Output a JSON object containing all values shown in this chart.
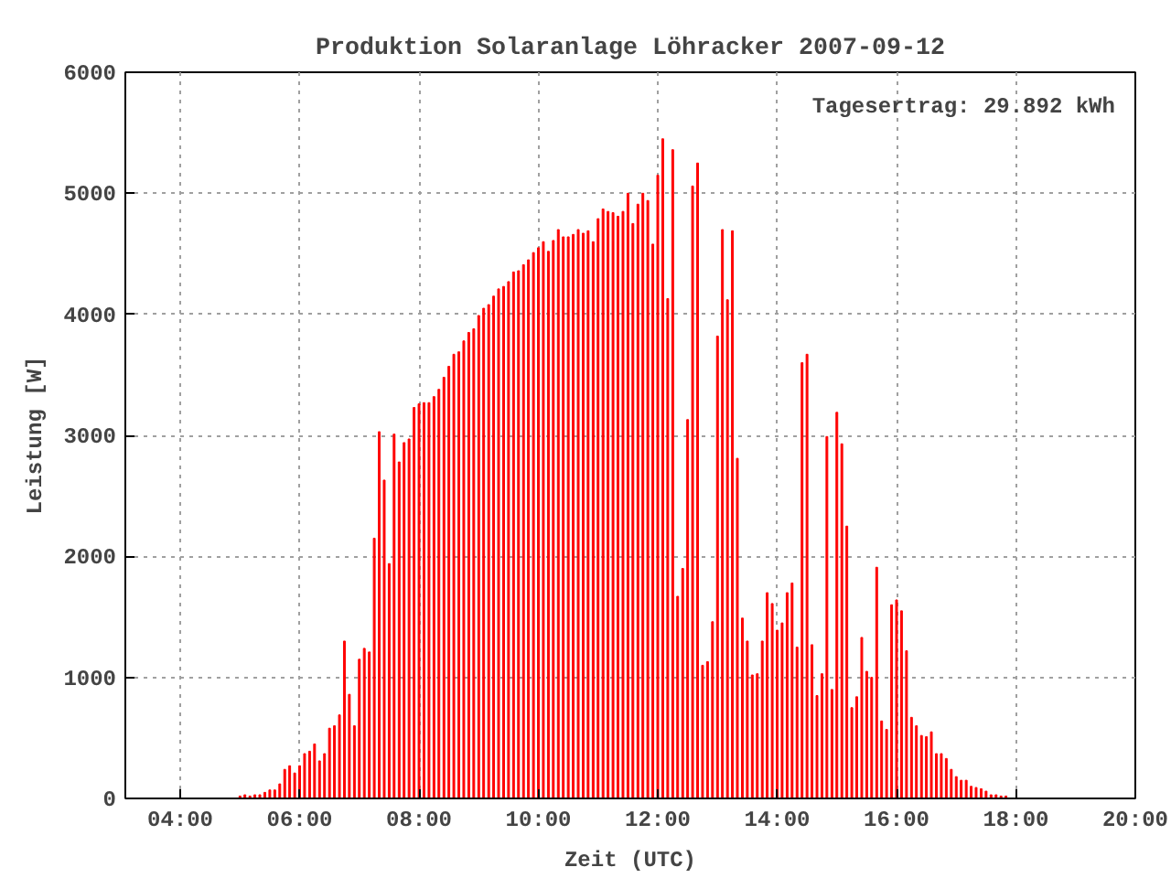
{
  "chart_data": {
    "type": "bar",
    "title": "Produktion Solaranlage Löhracker 2007-09-12",
    "xlabel": "Zeit (UTC)",
    "ylabel": "Leistung [W]",
    "annotations": [
      "Tagesertrag: 29.892 kWh"
    ],
    "x": [
      5,
      5.083,
      5.167,
      5.25,
      5.333,
      5.417,
      5.5,
      5.583,
      5.667,
      5.75,
      5.833,
      5.917,
      6,
      6.083,
      6.167,
      6.25,
      6.333,
      6.417,
      6.5,
      6.583,
      6.667,
      6.75,
      6.833,
      6.917,
      7,
      7.083,
      7.167,
      7.25,
      7.333,
      7.417,
      7.5,
      7.583,
      7.667,
      7.75,
      7.833,
      7.917,
      8,
      8.083,
      8.167,
      8.25,
      8.333,
      8.417,
      8.5,
      8.583,
      8.667,
      8.75,
      8.833,
      8.917,
      9,
      9.083,
      9.167,
      9.25,
      9.333,
      9.417,
      9.5,
      9.583,
      9.667,
      9.75,
      9.833,
      9.917,
      10,
      10.083,
      10.167,
      10.25,
      10.333,
      10.417,
      10.5,
      10.583,
      10.667,
      10.75,
      10.833,
      10.917,
      11,
      11.083,
      11.167,
      11.25,
      11.333,
      11.417,
      11.5,
      11.583,
      11.667,
      11.75,
      11.833,
      11.917,
      12,
      12.083,
      12.167,
      12.25,
      12.333,
      12.417,
      12.5,
      12.583,
      12.667,
      12.75,
      12.833,
      12.917,
      13,
      13.083,
      13.167,
      13.25,
      13.333,
      13.417,
      13.5,
      13.583,
      13.667,
      13.75,
      13.833,
      13.917,
      14,
      14.083,
      14.167,
      14.25,
      14.333,
      14.417,
      14.5,
      14.583,
      14.667,
      14.75,
      14.833,
      14.917,
      15,
      15.083,
      15.167,
      15.25,
      15.333,
      15.417,
      15.5,
      15.583,
      15.667,
      15.75,
      15.833,
      15.917,
      16,
      16.083,
      16.167,
      16.25,
      16.333,
      16.417,
      16.5,
      16.583,
      16.667,
      16.75,
      16.833,
      16.917,
      17,
      17.083,
      17.167,
      17.25,
      17.333,
      17.417,
      17.5,
      17.583,
      17.667,
      17.75,
      17.833
    ],
    "series": [
      {
        "color": "#ff0000",
        "values": [
          20,
          30,
          20,
          30,
          30,
          50,
          70,
          70,
          120,
          240,
          270,
          210,
          270,
          370,
          390,
          450,
          310,
          370,
          580,
          600,
          690,
          1300,
          860,
          600,
          1150,
          1240,
          1210,
          2150,
          3030,
          2630,
          1940,
          3010,
          2780,
          2940,
          2970,
          3230,
          3260,
          3270,
          3270,
          3320,
          3380,
          3480,
          3570,
          3670,
          3690,
          3780,
          3850,
          3880,
          3990,
          4050,
          4080,
          4150,
          4210,
          4230,
          4270,
          4350,
          4360,
          4410,
          4450,
          4510,
          4550,
          4600,
          4520,
          4610,
          4700,
          4640,
          4640,
          4660,
          4700,
          4670,
          4690,
          4600,
          4790,
          4870,
          4850,
          4840,
          4810,
          4850,
          5000,
          4750,
          4910,
          5000,
          4940,
          4580,
          5150,
          5450,
          4130,
          5360,
          1670,
          1900,
          3130,
          5060,
          5250,
          1100,
          1130,
          1460,
          3820,
          4700,
          4120,
          4690,
          2810,
          1490,
          1300,
          1020,
          1030,
          1300,
          1700,
          1610,
          1390,
          1450,
          1700,
          1780,
          1250,
          3600,
          3670,
          1270,
          850,
          1030,
          2990,
          900,
          3190,
          2930,
          2250,
          750,
          840,
          1330,
          1050,
          1000,
          1910,
          640,
          570,
          1600,
          1640,
          1550,
          1220,
          670,
          600,
          520,
          510,
          550,
          370,
          370,
          330,
          240,
          180,
          150,
          150,
          100,
          90,
          80,
          60,
          30,
          30,
          20,
          20
        ]
      }
    ],
    "xlim": [
      3.08,
      20
    ],
    "xticks": [
      {
        "value": 4,
        "label": "04:00"
      },
      {
        "value": 6,
        "label": "06:00"
      },
      {
        "value": 8,
        "label": "08:00"
      },
      {
        "value": 10,
        "label": "10:00"
      },
      {
        "value": 12,
        "label": "12:00"
      },
      {
        "value": 14,
        "label": "14:00"
      },
      {
        "value": 16,
        "label": "16:00"
      },
      {
        "value": 18,
        "label": "18:00"
      },
      {
        "value": 20,
        "label": "20:00"
      }
    ],
    "ylim": [
      0,
      6000
    ],
    "yticks": [
      0,
      1000,
      2000,
      3000,
      4000,
      5000,
      6000
    ],
    "grid": true
  }
}
